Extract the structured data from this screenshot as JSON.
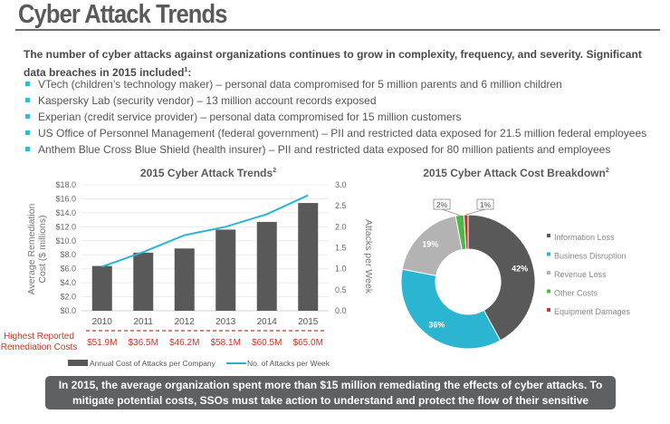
{
  "title": "Cyber Attack Trends",
  "intro": {
    "text": "The number of cyber attacks against organizations continues to grow in complexity, frequency, and severity. Significant data breaches in 2015 included",
    "footnote": "1",
    ":": ":"
  },
  "bullets": [
    "VTech (children’s technology maker) – personal data compromised for 5 million parents and 6 million children",
    "Kaspersky Lab (security vendor) – 13 million account records exposed",
    "Experian (credit service provider) – personal data compromised for 15 million customers",
    "US Office of Personnel Management (federal government) – PII and restricted data exposed for 21.5 million federal employees",
    "Anthem Blue Cross Blue Shield (health insurer) – PII and restricted data exposed for 80 million patients and employees"
  ],
  "colors": {
    "bar": "#595959",
    "line": "#2bb5d0",
    "red": "#c0392b",
    "accent": "#3bb7d0"
  },
  "chart_data": [
    {
      "type": "bar",
      "title": "2015 Cyber Attack Trends",
      "title_footnote": "2",
      "categories": [
        "2010",
        "2011",
        "2012",
        "2013",
        "2014",
        "2015"
      ],
      "ylabel": "Average Remediation Cost ($ millions)",
      "y2label": "Attacks per Week",
      "ylim": [
        0,
        18
      ],
      "y2lim": [
        0,
        3
      ],
      "yticks": [
        "$0.0",
        "$2.0",
        "$4.0",
        "$6.0",
        "$8.0",
        "$10.0",
        "$12.0",
        "$14.0",
        "$16.0",
        "$18.0"
      ],
      "y2ticks": [
        "0.0",
        "0.5",
        "1.0",
        "1.5",
        "2.0",
        "2.5",
        "3.0"
      ],
      "series": [
        {
          "name": "Annual Cost of Attacks per Company",
          "type": "bar",
          "values": [
            6.4,
            8.3,
            8.9,
            11.6,
            12.7,
            15.4
          ],
          "color": "#595959"
        },
        {
          "name": "No. of Attacks per Week",
          "type": "line",
          "axis": "right",
          "values": [
            1.05,
            1.4,
            1.8,
            2.0,
            2.3,
            2.75
          ],
          "color": "#2bb5d0"
        }
      ],
      "annotation_label": "Highest Reported Remediation Costs",
      "annotation_values": [
        "$51.9M",
        "$36.5M",
        "$46.2M",
        "$58.1M",
        "$60.5M",
        "$65.0M"
      ],
      "legend": "bottom",
      "grid": true
    },
    {
      "type": "pie",
      "title": "2015 Cyber Attack Cost Breakdown",
      "title_footnote": "2",
      "slices": [
        {
          "label": "Information Loss",
          "value": 42,
          "text": "42%",
          "color": "#595959"
        },
        {
          "label": "Business Disruption",
          "value": 36,
          "text": "36%",
          "color": "#2bb5d0"
        },
        {
          "label": "Revenue Loss",
          "value": 19,
          "text": "19%",
          "color": "#b3b3b3"
        },
        {
          "label": "Other Costs",
          "value": 2,
          "text": "2%",
          "color": "#4db848"
        },
        {
          "label": "Equipment Damages",
          "value": 1,
          "text": "1%",
          "color": "#c0392b"
        }
      ],
      "donut": true,
      "legend": "right"
    }
  ],
  "banner": "In 2015, the average organization spent more than $15 million remediating the effects of cyber attacks. To mitigate potential costs, SSOs must take action to understand and protect the flow of their sensitive information."
}
